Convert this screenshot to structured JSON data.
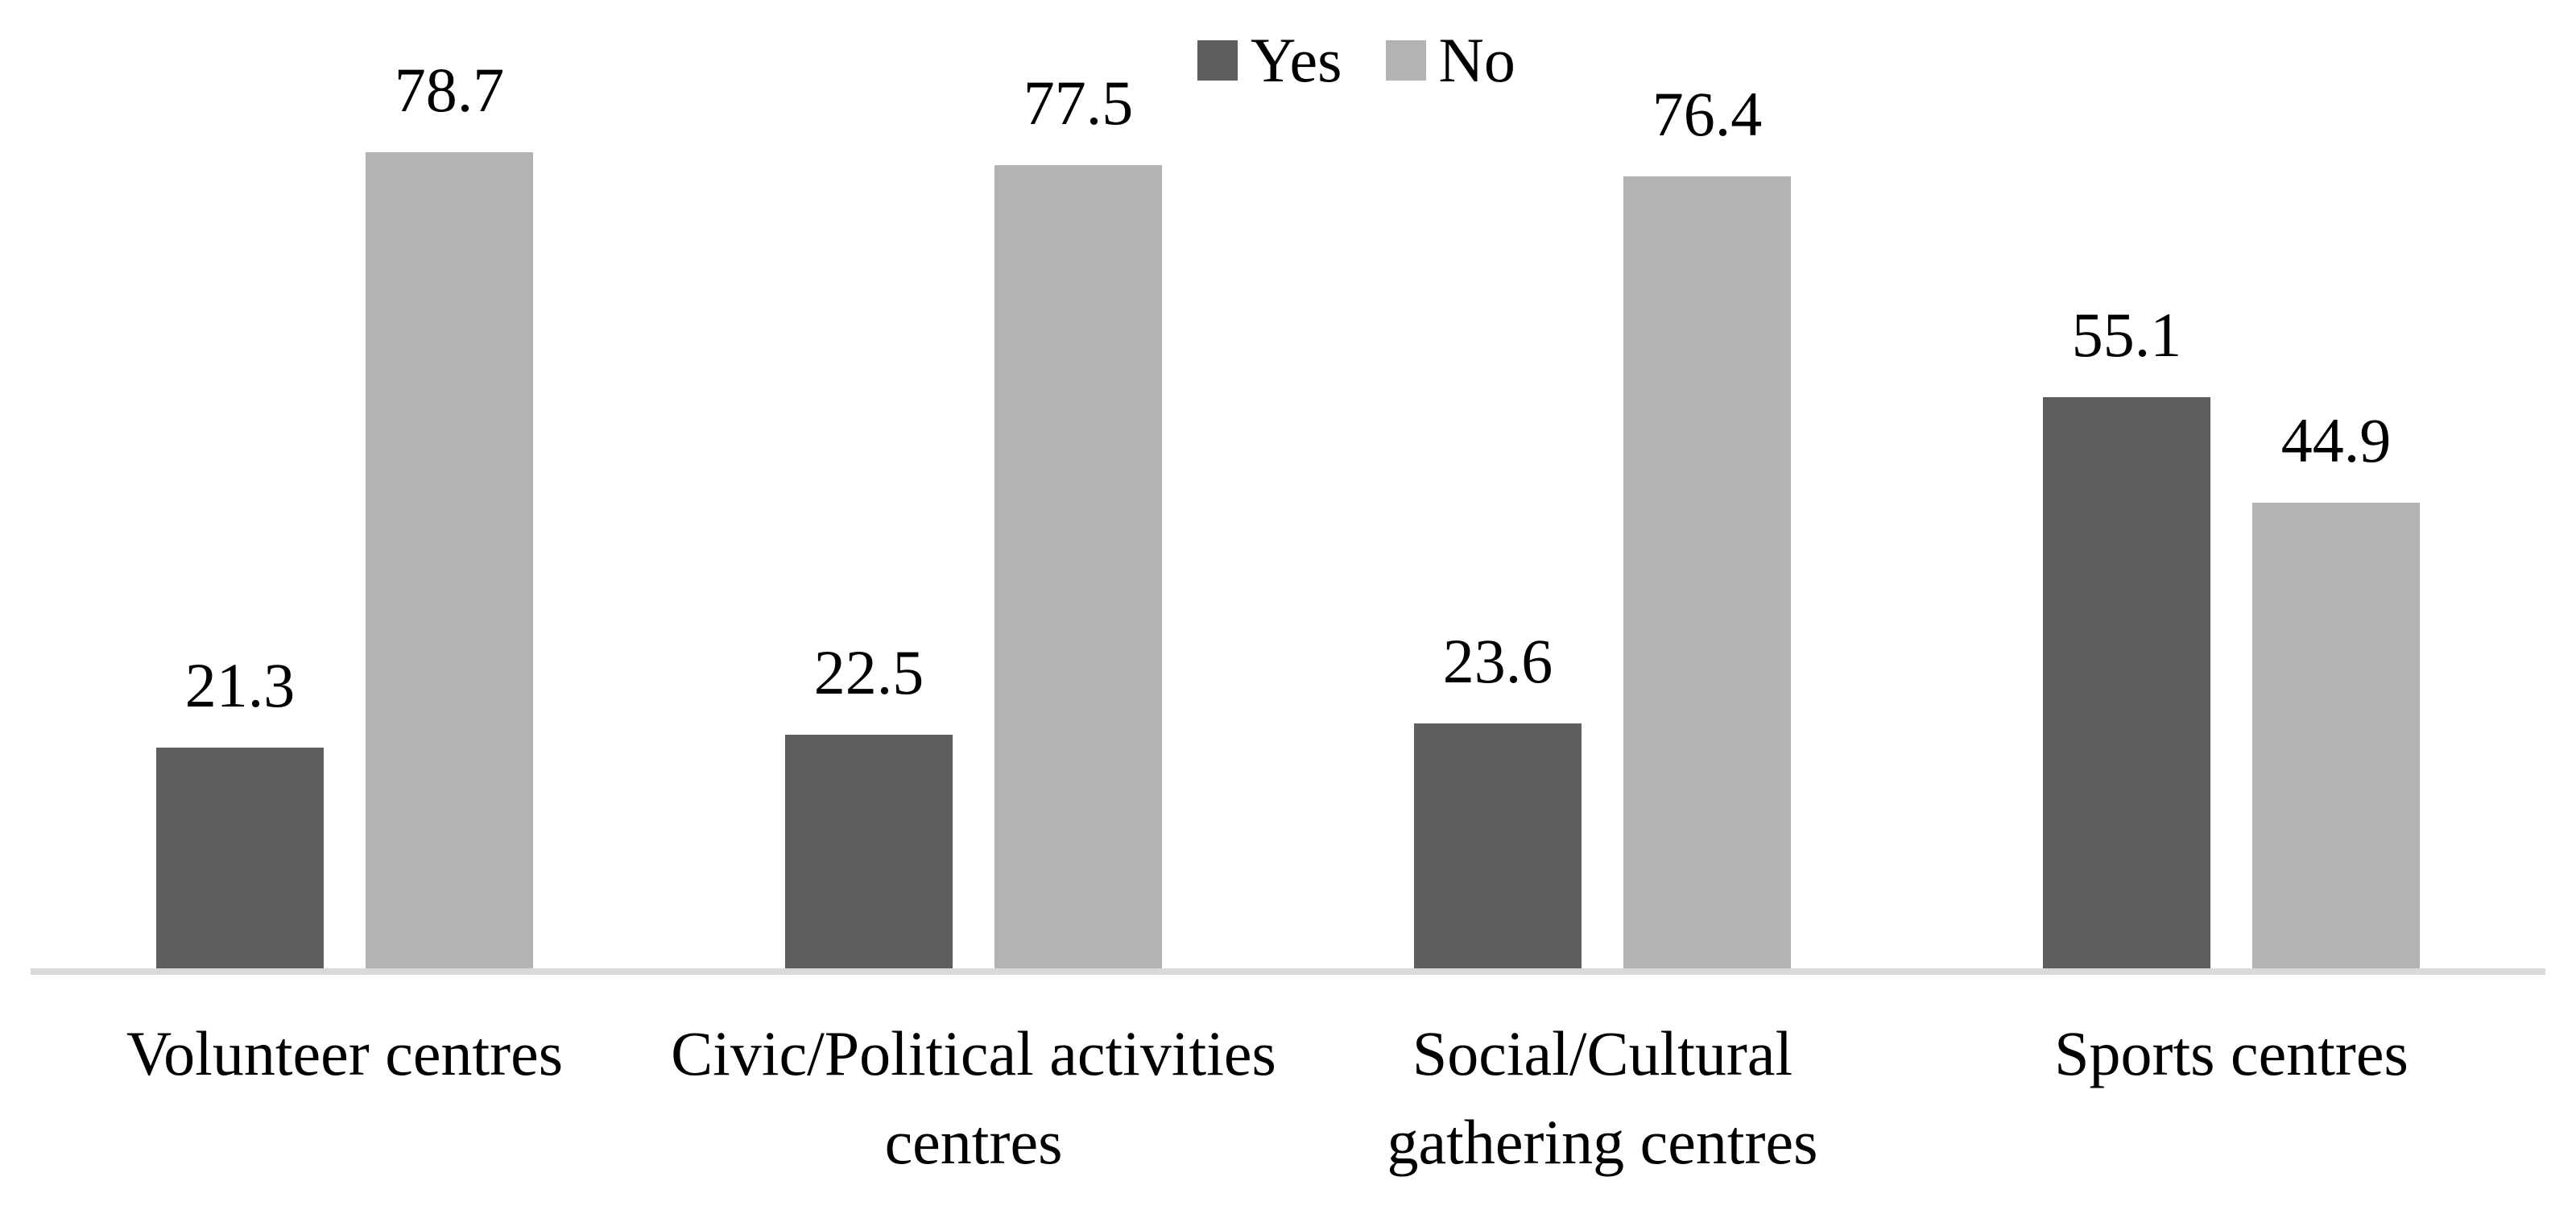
{
  "chart_data": {
    "type": "bar",
    "title": "",
    "xlabel": "",
    "ylabel": "",
    "ylim": [
      0,
      85
    ],
    "grid": false,
    "y_axis_visible": false,
    "data_labels": true,
    "legend_position": "top-center",
    "axis_line_color": "#d9d9d9",
    "background_color": "#ffffff",
    "text_color": "#000000",
    "categories": [
      {
        "label": "Volunteer centres",
        "lines": [
          "Volunteer centres"
        ]
      },
      {
        "label": "Civic/Political activities centres",
        "lines": [
          "Civic/Political activities",
          "centres"
        ]
      },
      {
        "label": "Social/Cultural gathering centres",
        "lines": [
          "Social/Cultural",
          "gathering centres"
        ]
      },
      {
        "label": "Sports centres",
        "lines": [
          "Sports centres"
        ]
      }
    ],
    "series": [
      {
        "name": "Yes",
        "color": "#5e5e5e",
        "values": [
          21.3,
          22.5,
          23.6,
          55.1
        ],
        "labels": [
          "21.3",
          "22.5",
          "23.6",
          "55.1"
        ]
      },
      {
        "name": "No",
        "color": "#b3b3b3",
        "values": [
          78.7,
          77.5,
          76.4,
          44.9
        ],
        "labels": [
          "78.7",
          "77.5",
          "76.4",
          "44.9"
        ]
      }
    ]
  },
  "legend": {
    "items": [
      {
        "label": "Yes",
        "color": "#5e5e5e"
      },
      {
        "label": "No",
        "color": "#b3b3b3"
      }
    ]
  }
}
